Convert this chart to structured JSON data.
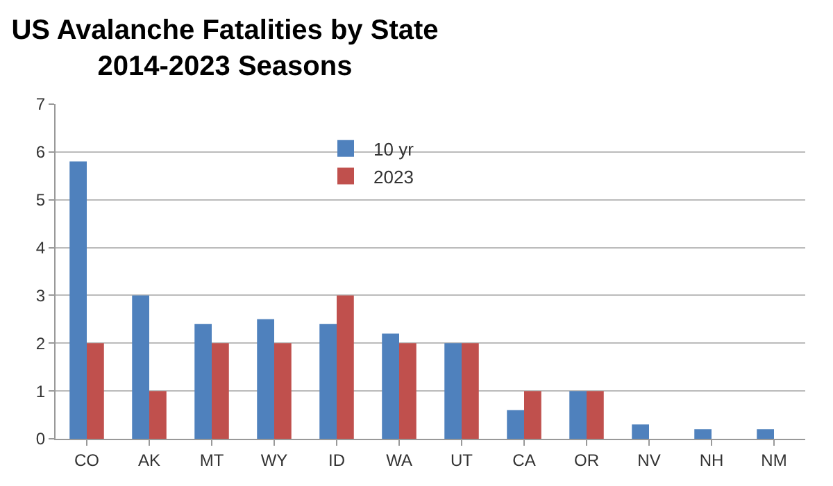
{
  "chart_data": {
    "type": "bar",
    "title": "US Avalanche Fatalities by State\n2014-2023 Seasons",
    "categories": [
      "CO",
      "AK",
      "MT",
      "WY",
      "ID",
      "WA",
      "UT",
      "CA",
      "OR",
      "NV",
      "NH",
      "NM"
    ],
    "series": [
      {
        "name": "10 yr",
        "color": "#4f81bd",
        "values": [
          5.8,
          3,
          2.4,
          2.5,
          2.4,
          2.2,
          2,
          0.6,
          1,
          0.3,
          0.2,
          0.2
        ]
      },
      {
        "name": "2023",
        "color": "#c0504d",
        "values": [
          2,
          1,
          2,
          2,
          3,
          2,
          2,
          1,
          1,
          0,
          0,
          0
        ]
      }
    ],
    "ylim": [
      0,
      7
    ],
    "yticks": [
      0,
      1,
      2,
      3,
      4,
      5,
      6,
      7
    ],
    "grid": "y",
    "legend": "top"
  }
}
